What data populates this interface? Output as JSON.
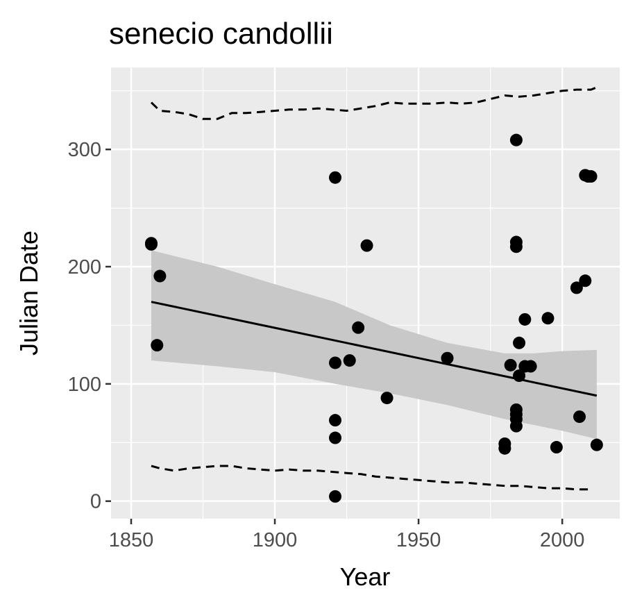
{
  "chart_data": {
    "type": "scatter",
    "title": "senecio candollii",
    "xlabel": "Year",
    "ylabel": "Julian Date",
    "xlim": [
      1843,
      2020
    ],
    "ylim": [
      -15,
      370
    ],
    "x_ticks": [
      "1850",
      "1900",
      "1950",
      "2000"
    ],
    "y_ticks": [
      "0",
      "100",
      "200",
      "300"
    ],
    "grid": true,
    "points": [
      {
        "x": 1857,
        "y": 220
      },
      {
        "x": 1857,
        "y": 219
      },
      {
        "x": 1859,
        "y": 133
      },
      {
        "x": 1860,
        "y": 192
      },
      {
        "x": 1921,
        "y": 276
      },
      {
        "x": 1921,
        "y": 118
      },
      {
        "x": 1921,
        "y": 69
      },
      {
        "x": 1921,
        "y": 54
      },
      {
        "x": 1921,
        "y": 4
      },
      {
        "x": 1926,
        "y": 120
      },
      {
        "x": 1929,
        "y": 148
      },
      {
        "x": 1932,
        "y": 218
      },
      {
        "x": 1939,
        "y": 88
      },
      {
        "x": 1960,
        "y": 122
      },
      {
        "x": 1980,
        "y": 49
      },
      {
        "x": 1980,
        "y": 45
      },
      {
        "x": 1982,
        "y": 116
      },
      {
        "x": 1984,
        "y": 308
      },
      {
        "x": 1984,
        "y": 221
      },
      {
        "x": 1984,
        "y": 217
      },
      {
        "x": 1984,
        "y": 78
      },
      {
        "x": 1984,
        "y": 74
      },
      {
        "x": 1984,
        "y": 70
      },
      {
        "x": 1984,
        "y": 64
      },
      {
        "x": 1985,
        "y": 135
      },
      {
        "x": 1985,
        "y": 107
      },
      {
        "x": 1987,
        "y": 155
      },
      {
        "x": 1987,
        "y": 115
      },
      {
        "x": 1989,
        "y": 115
      },
      {
        "x": 1995,
        "y": 156
      },
      {
        "x": 1998,
        "y": 46
      },
      {
        "x": 2005,
        "y": 182
      },
      {
        "x": 2006,
        "y": 72
      },
      {
        "x": 2008,
        "y": 278
      },
      {
        "x": 2008,
        "y": 188
      },
      {
        "x": 2009,
        "y": 277
      },
      {
        "x": 2010,
        "y": 277
      },
      {
        "x": 2012,
        "y": 48
      }
    ],
    "trend_line": {
      "x": [
        1857,
        2012
      ],
      "y": [
        170,
        90
      ]
    },
    "confidence_band": {
      "x": [
        1857,
        1880,
        1900,
        1921,
        1940,
        1960,
        1980,
        1990,
        2000,
        2012
      ],
      "lower": [
        120,
        115,
        110,
        100,
        92,
        82,
        70,
        65,
        60,
        53
      ],
      "upper": [
        214,
        200,
        185,
        170,
        150,
        135,
        126,
        126,
        128,
        129
      ]
    },
    "upper_dashed": {
      "x": [
        1857,
        1860,
        1865,
        1870,
        1875,
        1880,
        1885,
        1890,
        1895,
        1900,
        1905,
        1910,
        1915,
        1920,
        1925,
        1930,
        1935,
        1940,
        1945,
        1950,
        1955,
        1960,
        1965,
        1970,
        1975,
        1980,
        1985,
        1990,
        1995,
        2000,
        2005,
        2010,
        2012
      ],
      "y": [
        340,
        333,
        332,
        330,
        326,
        326,
        331,
        331,
        332,
        333,
        334,
        334,
        335,
        334,
        333,
        335,
        337,
        340,
        339,
        339,
        339,
        340,
        339,
        340,
        343,
        346,
        345,
        346,
        348,
        350,
        351,
        351,
        353
      ]
    },
    "lower_dashed": {
      "x": [
        1857,
        1860,
        1865,
        1870,
        1875,
        1880,
        1885,
        1890,
        1895,
        1900,
        1905,
        1910,
        1915,
        1920,
        1925,
        1930,
        1935,
        1940,
        1945,
        1950,
        1955,
        1960,
        1965,
        1970,
        1975,
        1980,
        1985,
        1990,
        1995,
        2000,
        2005,
        2010
      ],
      "y": [
        30,
        28,
        26,
        28,
        29,
        30,
        30,
        28,
        27,
        26,
        27,
        26,
        26,
        25,
        24,
        23,
        21,
        20,
        19,
        18,
        17,
        16,
        16,
        15,
        14,
        13,
        13,
        12,
        11,
        11,
        10,
        10
      ]
    },
    "colors": {
      "panel_background": "#ebebeb",
      "grid_major": "#ffffff",
      "points": "#000000",
      "trend_line": "#000000",
      "confidence_band": "#c8c8c8",
      "tick_label": "#4d4d4d"
    }
  }
}
